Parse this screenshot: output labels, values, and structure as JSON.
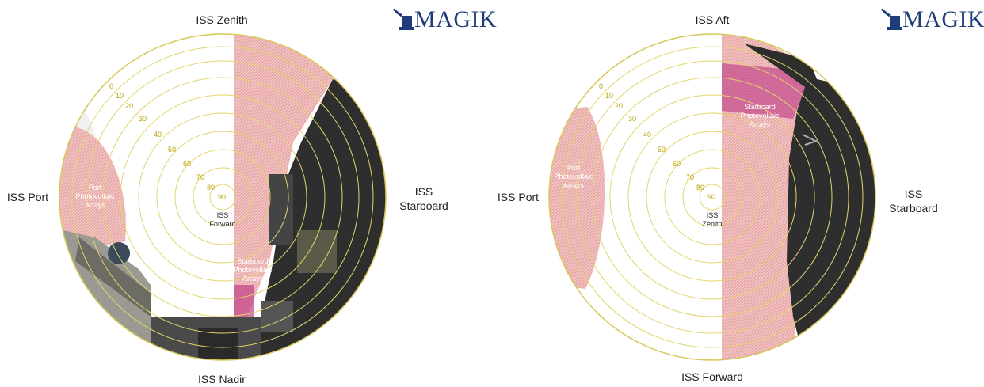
{
  "left_view": {
    "labels": {
      "top": "ISS Zenith",
      "bottom": "ISS Nadir",
      "left": "ISS Port",
      "right": [
        "ISS",
        "Starboard"
      ]
    },
    "center": [
      "ISS",
      "Forward"
    ],
    "regions": [
      {
        "name": "port-photovoltaic-arrays",
        "lines": [
          "Port",
          "Photovoltaic",
          "Arrays"
        ]
      },
      {
        "name": "starboard-photovoltaic-arrays",
        "lines": [
          "Starboard",
          "Photovoltaic",
          "Arrays"
        ]
      }
    ],
    "ring_labels": [
      "0",
      "10",
      "20",
      "30",
      "40",
      "50",
      "60",
      "70",
      "80",
      "90"
    ]
  },
  "right_view": {
    "labels": {
      "top": "ISS Aft",
      "bottom": "ISS Forward",
      "left": "ISS Port",
      "right": [
        "ISS",
        "Starboard"
      ]
    },
    "center": [
      "ISS",
      "Zenith"
    ],
    "regions": [
      {
        "name": "port-photovoltaic-arrays",
        "lines": [
          "Port",
          "Photovoltaic",
          "Arrays"
        ]
      },
      {
        "name": "starboard-photovoltaic-arrays",
        "lines": [
          "Starboard",
          "Photovoltaic",
          "Arrays"
        ]
      }
    ],
    "ring_labels": [
      "0",
      "10",
      "20",
      "30",
      "40",
      "50",
      "60",
      "70",
      "80",
      "90"
    ]
  },
  "logo": {
    "text": "MAGIK"
  },
  "colors": {
    "ring": "#e2d56a",
    "rim": "#d8c85a",
    "array_pink": "#e7a7a7",
    "array_magenta": "#c0408a",
    "structure_dark": "#2e2e2e",
    "logo": "#1f3c7a"
  }
}
